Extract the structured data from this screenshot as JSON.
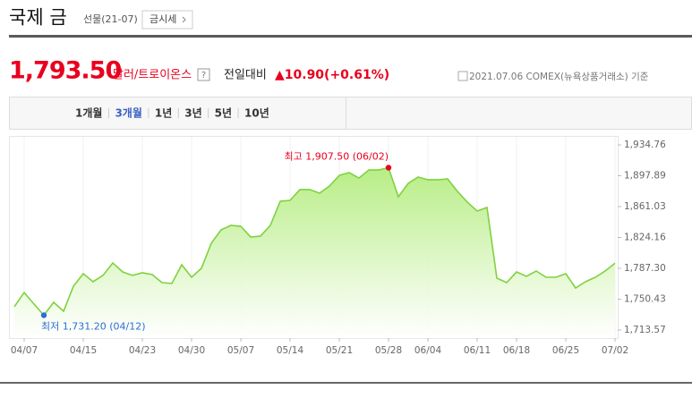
{
  "header": {
    "title": "국제 금",
    "subtitle": "선물(21-07)",
    "button": "금시세"
  },
  "price": {
    "value": "1,793.50",
    "unit": "달러/트로이온스",
    "help": "?",
    "change_label": "전일대비",
    "change": "▲10.90(+0.61%)",
    "source": "2021.07.06 COMEX(뉴욕상품거래소) 기준"
  },
  "tabs": {
    "items": [
      "1개월",
      "3개월",
      "1년",
      "3년",
      "5년",
      "10년"
    ],
    "selected": 1
  },
  "chart_data": {
    "type": "area",
    "categories": [
      null,
      "04/07",
      null,
      null,
      null,
      null,
      null,
      "04/15",
      null,
      null,
      null,
      null,
      null,
      "04/23",
      null,
      null,
      null,
      null,
      "04/30",
      null,
      null,
      null,
      null,
      "05/07",
      null,
      null,
      null,
      null,
      "05/14",
      null,
      null,
      null,
      null,
      "05/21",
      null,
      null,
      null,
      null,
      "05/28",
      null,
      null,
      null,
      "06/04",
      null,
      null,
      null,
      null,
      "06/11",
      null,
      null,
      null,
      "06/18",
      null,
      null,
      null,
      null,
      "06/25",
      null,
      null,
      null,
      null,
      "07/02"
    ],
    "series": [
      {
        "color": "#7ed23f",
        "fill": "#c8f0a0",
        "values": [
          1741.4,
          1758.4,
          1744.6,
          1731.2,
          1746.7,
          1736.0,
          1765.9,
          1780.9,
          1771.3,
          1778.8,
          1793.7,
          1783.0,
          1778.8,
          1782.0,
          1779.8,
          1770.2,
          1769.2,
          1791.6,
          1776.6,
          1787.3,
          1817.2,
          1833.3,
          1838.6,
          1837.5,
          1824.7,
          1825.8,
          1838.6,
          1867.5,
          1868.5,
          1881.4,
          1881.4,
          1877.1,
          1885.6,
          1898.4,
          1901.6,
          1895.2,
          1904.8,
          1904.8,
          1907.5,
          1872.8,
          1888.8,
          1896.3,
          1893.1,
          1893.1,
          1894.2,
          1879.2,
          1866.4,
          1855.7,
          1860.0,
          1775.6,
          1770.2,
          1783.0,
          1777.7,
          1784.1,
          1776.6,
          1776.6,
          1780.9,
          1763.8,
          1771.3,
          1776.6,
          1784.1,
          1793.5
        ]
      }
    ],
    "ylim": [
      1703.95,
      1942.24
    ],
    "yticks": [
      {
        "value": 1934.76,
        "label": "1,934.76"
      },
      {
        "value": 1897.89,
        "label": "1,897.89"
      },
      {
        "value": 1861.03,
        "label": "1,861.03"
      },
      {
        "value": 1824.16,
        "label": "1,824.16"
      },
      {
        "value": 1787.3,
        "label": "1,787.30"
      },
      {
        "value": 1750.43,
        "label": "1,750.43"
      },
      {
        "value": 1713.57,
        "label": "1,713.57"
      }
    ],
    "annotations": {
      "high": "최고 1,907.50 (06/02)",
      "low": "최저 1,731.20 (04/12)"
    },
    "high_color": "#e8001e",
    "low_color": "#2b6fd6"
  }
}
